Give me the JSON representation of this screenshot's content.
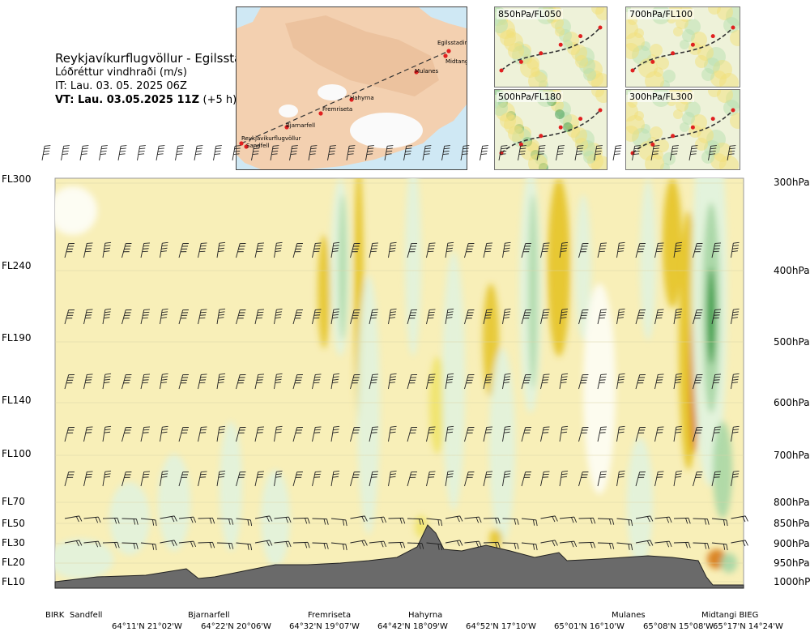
{
  "header": {
    "route": "Reykjavíkurflugvöllur - Egilsstadir",
    "variable": "Lóðréttur vindhraði (m/s)",
    "issue_time": "IT: Lau. 03. 05. 2025 06Z",
    "valid_lead": "VT:",
    "valid_time": "Lau. 03.05.2025 11Z",
    "valid_offset": "(+5 h)"
  },
  "map": {
    "places": [
      "Egilsstadir",
      "Midtangi",
      "Mulanes",
      "Hahyrna",
      "Fremriseta",
      "Bjarnarfell",
      "Reykjavíkurflugvöllur",
      "Sandfell"
    ],
    "land_color": "#f4d2b6",
    "sea_color": "#cfe8f4",
    "ice_color": "#ffffff",
    "route_color": "#333333",
    "point_color": "#e02020"
  },
  "insets": [
    {
      "label": "850hPa/FL050"
    },
    {
      "label": "700hPa/FL100"
    },
    {
      "label": "500hPa/FL180"
    },
    {
      "label": "300hPa/FL300"
    }
  ],
  "chart_data": {
    "type": "heatmap",
    "title": "Lóðréttur vindhraði (m/s)",
    "y_left_ticks": [
      "FL300",
      "FL240",
      "FL190",
      "FL140",
      "FL100",
      "FL70",
      "FL50",
      "FL30",
      "FL20",
      "FL10"
    ],
    "y_right_ticks": [
      "300hPa",
      "400hPa",
      "500hPa",
      "600hPa",
      "700hPa",
      "800hPa",
      "850hPa",
      "900hPa",
      "950hPa",
      "1000hPa"
    ],
    "pressure_levels_hpa": [
      300,
      400,
      500,
      600,
      700,
      800,
      850,
      900,
      950,
      1000
    ],
    "x_places": [
      "BIRK",
      "Sandfell",
      "Bjarnarfell",
      "Fremriseta",
      "Hahyrna",
      "Mulanes",
      "Midtangi BIEG"
    ],
    "x_coordinates": [
      "64°11'N 21°02'W",
      "64°22'N 20°06'W",
      "64°32'N 19°07'W",
      "64°42'N 18°09'W",
      "64°52'N 17°10'W",
      "65°01'N 16°10'W",
      "65°08'N 15°08'W",
      "65°17'N 14°24'W"
    ],
    "colors": {
      "background": "#f8efb8",
      "downdraft_light": "#e1f2dd",
      "downdraft_mid": "#a9d7a5",
      "downdraft_strong": "#2f9a3f",
      "updraft_light": "#f0e36a",
      "updraft_mid": "#e6c52b",
      "updraft_strong": "#d9801e",
      "terrain": "#6a6a6a",
      "white_zone": "#fdfdf5"
    }
  }
}
